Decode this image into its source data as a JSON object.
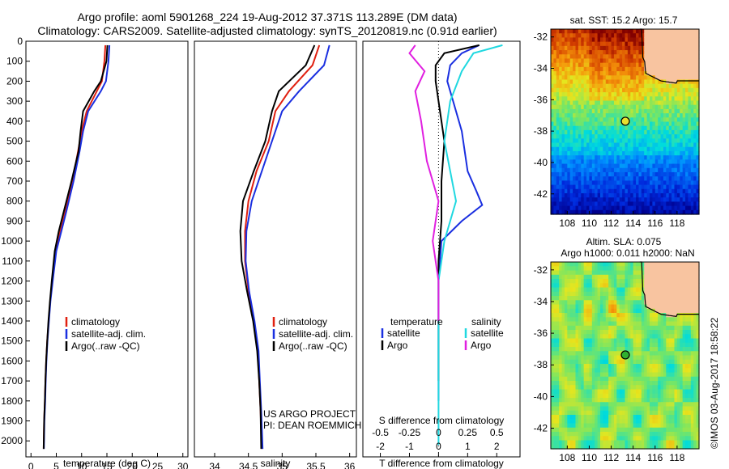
{
  "header": {
    "line1": "Argo profile: aoml 5901268_224 19-Aug-2012 37.371S 113.289E (DM data)",
    "line2": "Climatology: CARS2009. Satellite-adjusted climatology: synTS_20120819.nc (0.91d earlier)"
  },
  "colors": {
    "climatology": "#e02010",
    "satellite": "#1a2fe0",
    "argo": "#000000",
    "sal_satellite": "#20d8e0",
    "sal_argo": "#e020e0",
    "land": "#f8c4a0"
  },
  "chart_data": [
    {
      "type": "line",
      "xlabel": "temperature (deg C)",
      "ylabel": "",
      "xlim": [
        -1,
        31
      ],
      "ylim": [
        2080,
        0
      ],
      "xticks": [
        0,
        5,
        10,
        15,
        20,
        25,
        30
      ],
      "yticks": [
        0,
        100,
        200,
        300,
        400,
        500,
        600,
        700,
        800,
        900,
        1000,
        1100,
        1200,
        1300,
        1400,
        1500,
        1600,
        1700,
        1800,
        1900,
        2000
      ],
      "legend": [
        "climatology",
        "satellite-adj. clim.",
        "Argo(..raw -QC)"
      ],
      "series": [
        {
          "name": "climatology",
          "x": [
            14.7,
            14.5,
            14.0,
            13.0,
            11.0,
            10.0,
            9.3,
            8.2,
            6.8,
            5.8,
            4.9,
            4.2,
            3.8,
            3.5,
            3.2,
            3.0,
            2.85,
            2.75,
            2.6,
            2.5
          ],
          "y": [
            20,
            100,
            200,
            250,
            350,
            450,
            550,
            700,
            850,
            950,
            1050,
            1200,
            1300,
            1400,
            1500,
            1600,
            1700,
            1800,
            1900,
            2040
          ]
        },
        {
          "name": "satellite-adj. clim.",
          "x": [
            15.5,
            15.3,
            14.8,
            13.8,
            11.3,
            10.3,
            9.6,
            8.4,
            7.0,
            6.0,
            5.0,
            4.3,
            3.85,
            3.55,
            3.25,
            3.05,
            2.9,
            2.8,
            2.65,
            2.55
          ],
          "y": [
            20,
            100,
            200,
            250,
            350,
            450,
            550,
            700,
            850,
            950,
            1050,
            1200,
            1300,
            1400,
            1500,
            1600,
            1700,
            1800,
            1900,
            2040
          ]
        },
        {
          "name": "Argo(..raw -QC)",
          "x": [
            15.1,
            14.9,
            13.8,
            12.5,
            10.3,
            9.8,
            9.4,
            8.0,
            6.5,
            5.5,
            4.7,
            4.1,
            3.75,
            3.45,
            3.2,
            3.0,
            2.85,
            2.75,
            2.6,
            2.5
          ],
          "y": [
            20,
            100,
            200,
            250,
            350,
            450,
            550,
            700,
            850,
            950,
            1050,
            1200,
            1300,
            1400,
            1500,
            1600,
            1700,
            1800,
            1900,
            2040
          ]
        }
      ]
    },
    {
      "type": "line",
      "xlabel": "salinity",
      "ylabel": "",
      "xlim": [
        33.7,
        36.1
      ],
      "ylim": [
        2080,
        0
      ],
      "xticks": [
        34,
        34.5,
        35,
        35.5,
        36
      ],
      "legend": [
        "climatology",
        "satellite-adj. clim.",
        "Argo(..raw -QC)"
      ],
      "notes": [
        "US ARGO PROJECT",
        "PI: DEAN ROEMMICH"
      ],
      "series": [
        {
          "name": "climatology",
          "x": [
            35.55,
            35.45,
            35.1,
            34.9,
            34.8,
            34.62,
            34.5,
            34.45,
            34.45,
            34.5,
            34.58,
            34.64,
            34.66,
            34.68,
            34.7
          ],
          "y": [
            20,
            120,
            250,
            350,
            500,
            650,
            800,
            950,
            1100,
            1250,
            1400,
            1550,
            1700,
            1850,
            2040
          ]
        },
        {
          "name": "satellite-adj. clim.",
          "x": [
            35.7,
            35.62,
            35.25,
            35.0,
            34.85,
            34.7,
            34.55,
            34.47,
            34.46,
            34.51,
            34.59,
            34.65,
            34.67,
            34.69,
            34.71
          ],
          "y": [
            20,
            120,
            250,
            350,
            500,
            650,
            800,
            950,
            1100,
            1250,
            1400,
            1550,
            1700,
            1850,
            2040
          ]
        },
        {
          "name": "Argo(..raw -QC)",
          "x": [
            35.48,
            35.35,
            34.95,
            34.85,
            34.75,
            34.58,
            34.42,
            34.38,
            34.4,
            34.48,
            34.57,
            34.63,
            34.66,
            34.68,
            34.69
          ],
          "y": [
            20,
            120,
            250,
            350,
            500,
            650,
            800,
            950,
            1100,
            1250,
            1400,
            1550,
            1700,
            1850,
            2040
          ]
        }
      ]
    },
    {
      "type": "line",
      "xlabel": "T difference from climatology",
      "xlabel2": "S difference from climatology",
      "xlim": [
        -2.6,
        2.8
      ],
      "ylim": [
        2080,
        0
      ],
      "xticks": [
        -2,
        -1,
        0,
        1,
        2
      ],
      "xticks2": [
        "-0.5",
        "-0.25",
        "0",
        "0.25",
        "0.5"
      ],
      "legend_headers": [
        "temperature",
        "salinity"
      ],
      "legend": [
        "satellite",
        "Argo",
        "satellite",
        "Argo"
      ],
      "series": [
        {
          "name": "temperature satellite",
          "x": [
            1.4,
            0.8,
            0.4,
            0.3,
            0.5,
            0.8,
            0.9,
            1.0,
            1.3,
            1.5,
            0.8,
            0.1,
            0.0,
            0.0,
            0.0
          ],
          "y": [
            20,
            60,
            120,
            200,
            300,
            450,
            550,
            650,
            750,
            820,
            900,
            1000,
            1200,
            1500,
            1800
          ]
        },
        {
          "name": "temperature Argo",
          "x": [
            1.4,
            0.2,
            -0.1,
            -0.1,
            0.0,
            0.2,
            0.1,
            0.1,
            0.0,
            0.0,
            0.0,
            0.0
          ],
          "y": [
            20,
            60,
            120,
            200,
            300,
            500,
            700,
            900,
            1100,
            1300,
            1500,
            1700
          ]
        },
        {
          "name": "salinity satellite",
          "x": [
            0.55,
            0.3,
            0.2,
            0.1,
            0.05,
            0.1,
            0.15,
            0.05,
            0.0,
            0.0,
            0.0
          ],
          "y": [
            20,
            60,
            150,
            300,
            500,
            650,
            800,
            1000,
            1200,
            1600,
            2020
          ]
        },
        {
          "name": "salinity Argo",
          "x": [
            -0.2,
            -0.25,
            -0.12,
            -0.2,
            -0.15,
            -0.1,
            0.0,
            -0.05,
            0.0,
            0.0
          ],
          "y": [
            20,
            60,
            150,
            250,
            400,
            600,
            800,
            1000,
            1200,
            1400
          ]
        }
      ]
    },
    {
      "type": "heatmap",
      "title": "sat. SST: 15.2 Argo: 15.7",
      "xlim": [
        106.5,
        120
      ],
      "ylim": [
        -43.3,
        -31.5
      ],
      "xticks": [
        108,
        110,
        112,
        114,
        116,
        118
      ],
      "yticks": [
        -32,
        -34,
        -36,
        -38,
        -40,
        -42
      ],
      "marker": {
        "lon": 113.289,
        "lat": -37.371
      }
    },
    {
      "type": "heatmap",
      "title": "Altim. SLA: 0.075",
      "subtitle": "Argo h1000: 0.011 h2000: NaN",
      "xlim": [
        106.5,
        120
      ],
      "ylim": [
        -43.3,
        -31.5
      ],
      "xticks": [
        108,
        110,
        112,
        114,
        116,
        118
      ],
      "yticks": [
        -32,
        -34,
        -36,
        -38,
        -40,
        -42
      ],
      "marker": {
        "lon": 113.289,
        "lat": -37.371
      }
    }
  ],
  "stamp": "©IMOS 03-Aug-2017 18:58:22"
}
